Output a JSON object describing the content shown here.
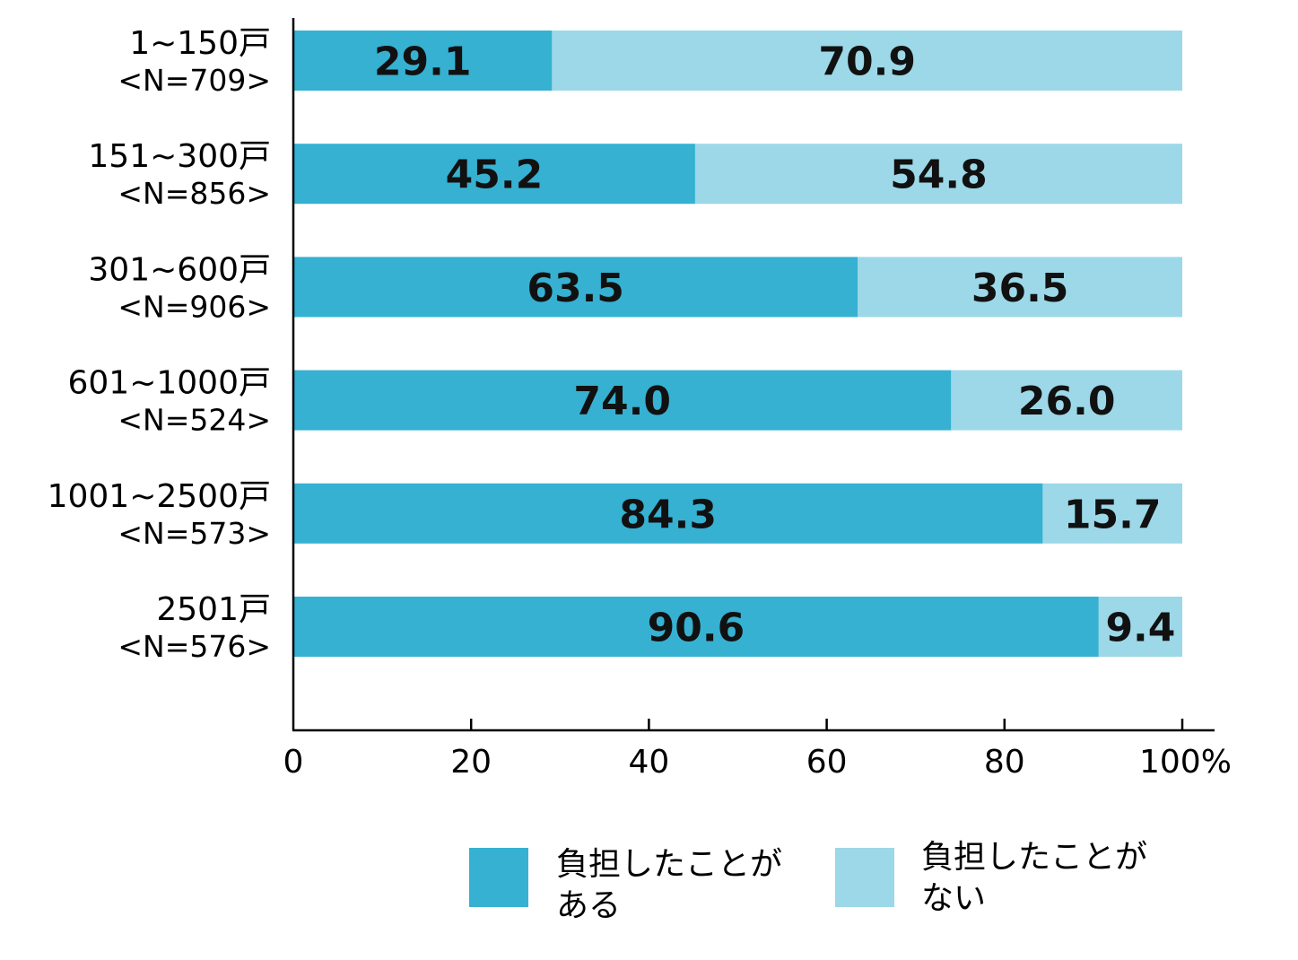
{
  "chart_data": {
    "type": "bar",
    "orientation": "horizontal",
    "stacked": true,
    "categories": [
      "1~150戸",
      "151~300戸",
      "301~600戸",
      "601~1000戸",
      "1001~2500戸",
      "2501戸"
    ],
    "sample_sizes": [
      "<N=709>",
      "<N=856>",
      "<N=906>",
      "<N=524>",
      "<N=573>",
      "<N=576>"
    ],
    "series": [
      {
        "name_lines": [
          "負担したことが",
          "ある"
        ],
        "color": "#36b1d2",
        "values": [
          29.1,
          45.2,
          63.5,
          74.0,
          84.3,
          90.6
        ],
        "value_labels": [
          "29.1",
          "45.2",
          "63.5",
          "74.0",
          "84.3",
          "90.6"
        ]
      },
      {
        "name_lines": [
          "負担したことが",
          "ない"
        ],
        "color": "#9cd8e8",
        "values": [
          70.9,
          54.8,
          36.5,
          26.0,
          15.7,
          9.4
        ],
        "value_labels": [
          "70.9",
          "54.8",
          "36.5",
          "26.0",
          "15.7",
          "9.4"
        ]
      }
    ],
    "xlim": [
      0,
      100
    ],
    "x_ticks": [
      0,
      20,
      40,
      60,
      80,
      100
    ],
    "x_tick_labels": [
      "0",
      "20",
      "40",
      "60",
      "80",
      "100%"
    ],
    "grid": false,
    "legend_position": "bottom"
  }
}
